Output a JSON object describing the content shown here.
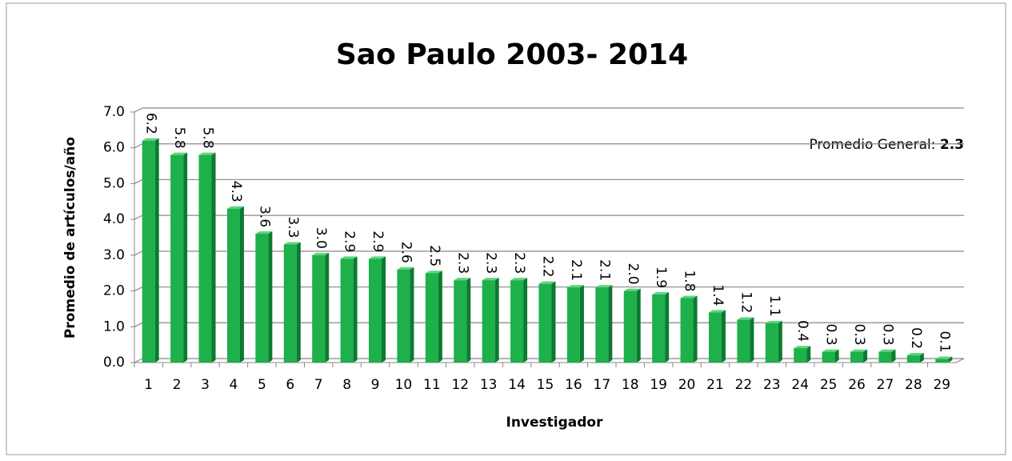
{
  "chart_data": {
    "type": "bar",
    "title": "Sao Paulo 2003- 2014",
    "x_label": "Investigador",
    "y_label": "Promedio de artículos/año",
    "average_label": "Promedio  General:",
    "average": 2.3,
    "categories": [
      "1",
      "2",
      "3",
      "4",
      "5",
      "6",
      "7",
      "8",
      "9",
      "10",
      "11",
      "12",
      "13",
      "14",
      "15",
      "16",
      "17",
      "18",
      "19",
      "20",
      "21",
      "22",
      "23",
      "24",
      "25",
      "26",
      "27",
      "28",
      "29"
    ],
    "values": [
      6.2,
      5.8,
      5.8,
      4.3,
      3.6,
      3.3,
      3.0,
      2.9,
      2.9,
      2.6,
      2.5,
      2.3,
      2.3,
      2.3,
      2.2,
      2.1,
      2.1,
      2.0,
      1.9,
      1.8,
      1.4,
      1.2,
      1.1,
      0.4,
      0.3,
      0.3,
      0.3,
      0.2,
      0.1
    ],
    "value_labels": [
      "6.2",
      "5.8",
      "5.8",
      "4.3",
      "3.6",
      "3.3",
      "3.0",
      "2.9",
      "2.9",
      "2.6",
      "2.5",
      "2.3",
      "2.3",
      "2.3",
      "2.2",
      "2.1",
      "2.1",
      "2.0",
      "1.9",
      "1.8",
      "1.4",
      "1.2",
      "1.1",
      "0.4",
      "0.3",
      "0.3",
      "0.3",
      "0.2",
      "0.1"
    ],
    "color": "#1db04b",
    "ylim": [
      0,
      7
    ],
    "yticks": [
      {
        "value": 0,
        "label": "0.0"
      },
      {
        "value": 1,
        "label": "1.0"
      },
      {
        "value": 2,
        "label": "2.0"
      },
      {
        "value": 3,
        "label": "3.0"
      },
      {
        "value": 4,
        "label": "4.0"
      },
      {
        "value": 5,
        "label": "5.0"
      },
      {
        "value": 6,
        "label": "6.0"
      },
      {
        "value": 7,
        "label": "7.0"
      }
    ],
    "grid": true
  }
}
